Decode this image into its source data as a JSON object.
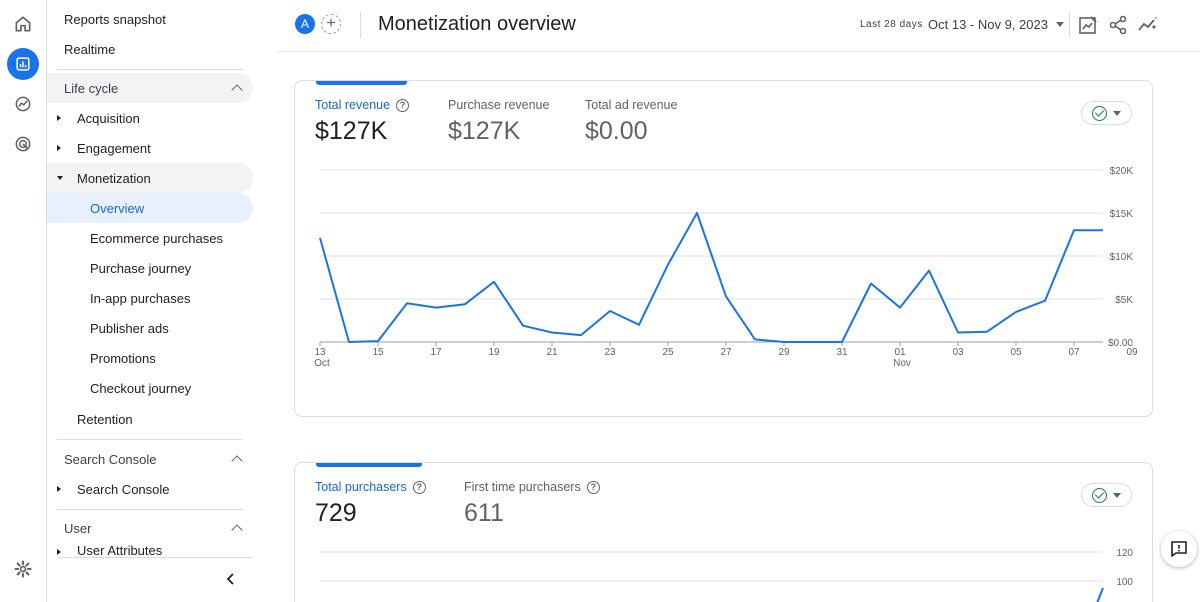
{
  "nav": {
    "reports_snapshot": "Reports snapshot",
    "realtime": "Realtime",
    "lifecycle": "Life cycle",
    "acquisition": "Acquisition",
    "engagement": "Engagement",
    "monetization": "Monetization",
    "sub": [
      "Overview",
      "Ecommerce purchases",
      "Purchase journey",
      "In-app purchases",
      "Publisher ads",
      "Promotions",
      "Checkout journey"
    ],
    "retention": "Retention",
    "search_console_section": "Search Console",
    "search_console": "Search Console",
    "user_section": "User",
    "user_attributes": "User Attributes"
  },
  "header": {
    "comparison_avatar": "A",
    "title": "Monetization overview",
    "date_label": "Last 28 days",
    "date_range": "Oct 13 - Nov 9, 2023"
  },
  "card1": {
    "metrics": [
      {
        "label": "Total revenue",
        "value": "$127K"
      },
      {
        "label": "Purchase revenue",
        "value": "$127K"
      },
      {
        "label": "Total ad revenue",
        "value": "$0.00"
      }
    ]
  },
  "card2": {
    "metrics": [
      {
        "label": "Total purchasers",
        "value": "729"
      },
      {
        "label": "First time purchasers",
        "value": "611"
      }
    ]
  },
  "chart_data": [
    {
      "type": "line",
      "ylabel": "",
      "y_ticks": [
        "$0.00",
        "$5K",
        "$10K",
        "$15K",
        "$20K"
      ],
      "ylim": [
        0,
        20000
      ],
      "x_ticks": [
        {
          "day": "13",
          "month": "Oct"
        },
        {
          "day": "15",
          "month": ""
        },
        {
          "day": "17",
          "month": ""
        },
        {
          "day": "19",
          "month": ""
        },
        {
          "day": "21",
          "month": ""
        },
        {
          "day": "23",
          "month": ""
        },
        {
          "day": "25",
          "month": ""
        },
        {
          "day": "27",
          "month": ""
        },
        {
          "day": "29",
          "month": ""
        },
        {
          "day": "31",
          "month": ""
        },
        {
          "day": "01",
          "month": "Nov"
        },
        {
          "day": "03",
          "month": ""
        },
        {
          "day": "05",
          "month": ""
        },
        {
          "day": "07",
          "month": ""
        },
        {
          "day": "09",
          "month": ""
        }
      ],
      "series": [
        {
          "values": [
            12100,
            0,
            100,
            4500,
            4000,
            4400,
            7000,
            1900,
            1100,
            800,
            3600,
            2000,
            9000,
            15000,
            5300,
            300,
            0,
            0,
            0,
            6800,
            4000,
            8300,
            1100,
            1200,
            3500,
            4800,
            13000,
            13000
          ]
        }
      ]
    },
    {
      "type": "line",
      "ylabel": "",
      "y_ticks": [
        "100",
        "120"
      ],
      "series": [
        {
          "values": []
        }
      ]
    }
  ],
  "colors": {
    "accent": "#1a73e8",
    "line": "#1a73e8",
    "grid": "#e0e0e0"
  }
}
